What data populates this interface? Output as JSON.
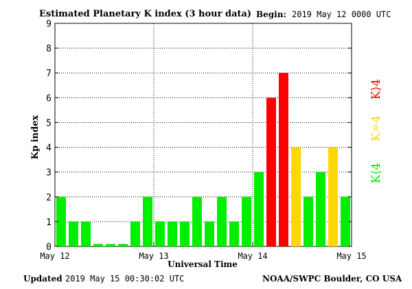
{
  "header": {
    "title": "Estimated Planetary K index (3 hour data)",
    "begin_label": "Begin:",
    "begin_value": "2019 May 12 0000 UTC"
  },
  "footer": {
    "updated_label": "Updated",
    "updated_value": "2019 May 15 00:30:02 UTC",
    "source": "NOAA/SWPC Boulder, CO USA"
  },
  "legend": {
    "above": {
      "label": "K⟩4",
      "color": "#ff0000"
    },
    "equal": {
      "label": "K=4",
      "color": "#ffd700"
    },
    "below": {
      "label": "K⟨4",
      "color": "#00ee00"
    }
  },
  "chart_data": {
    "type": "bar",
    "xlabel": "Universal Time",
    "ylabel": "Kp index",
    "ylim": [
      0,
      9
    ],
    "yticks": [
      0,
      1,
      2,
      3,
      4,
      5,
      6,
      7,
      8,
      9
    ],
    "xticks": [
      "May 12",
      "May 13",
      "May 14",
      "May 15"
    ],
    "interval": "3 hours",
    "start": "2019 May 12 0000 UTC",
    "values": [
      2,
      1,
      1,
      0.1,
      0.1,
      0.1,
      1,
      2,
      1,
      1,
      1,
      2,
      1,
      2,
      1,
      2,
      3,
      6,
      7,
      4,
      2,
      3,
      4,
      2
    ],
    "colors": {
      "below": "#00ee00",
      "equal": "#ffd700",
      "above": "#ff0000"
    },
    "grid": "dotted",
    "legend_position": "right"
  }
}
